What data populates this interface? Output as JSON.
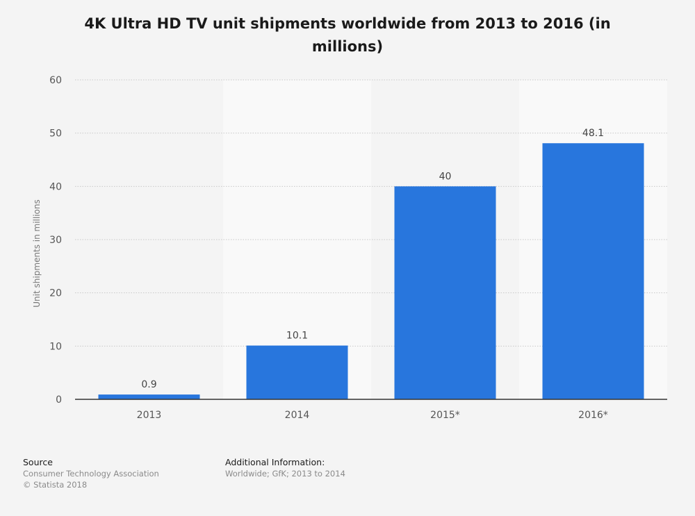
{
  "chart_data": {
    "type": "bar",
    "title": "4K Ultra HD TV unit shipments worldwide from 2013 to 2016 (in millions)",
    "xlabel": "",
    "ylabel": "Unit shipments in millions",
    "categories": [
      "2013",
      "2014",
      "2015*",
      "2016*"
    ],
    "values": [
      0.9,
      10.1,
      40,
      48.1
    ],
    "value_labels": [
      "0.9",
      "10.1",
      "40",
      "48.1"
    ],
    "ylim": [
      0,
      60
    ],
    "yticks": [
      0,
      10,
      20,
      30,
      40,
      50,
      60
    ],
    "bar_color": "#2876dd",
    "grid": true,
    "legend": "none"
  },
  "footer": {
    "source_heading": "Source",
    "source_lines": [
      "Consumer Technology Association",
      "© Statista 2018"
    ],
    "info_heading": "Additional Information:",
    "info_lines": [
      "Worldwide; GfK; 2013 to 2014"
    ]
  }
}
